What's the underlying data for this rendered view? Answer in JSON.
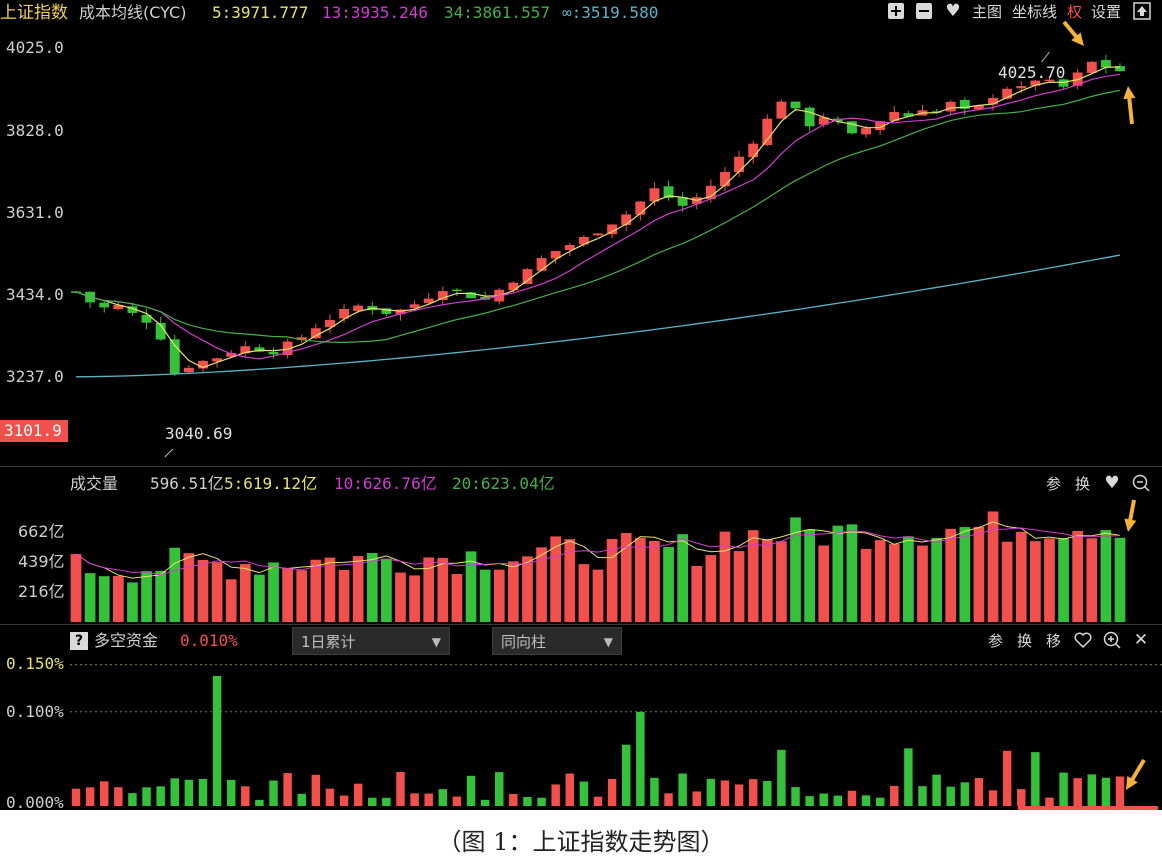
{
  "header": {
    "index_name": "上证指数",
    "indicator": "成本均线(CYC)",
    "ma5": "5:3971.777",
    "ma13": "13:3935.246",
    "ma34": "34:3861.557",
    "ma_inf": "∞:3519.580",
    "toolbar": {
      "main_chart": "主图",
      "axis": "坐标线",
      "rights": "权",
      "settings": "设置"
    }
  },
  "price_axis": {
    "labels": [
      "4025.0",
      "3828.0",
      "3631.0",
      "3434.0",
      "3237.0"
    ],
    "current_badge": "3101.9"
  },
  "annotations": {
    "high": "4025.70",
    "low": "3040.69"
  },
  "volume": {
    "title": "成交量",
    "value": "596.51亿",
    "ma5": "5:619.12亿",
    "ma10": "10:626.76亿",
    "ma20": "20:623.04亿",
    "axis": [
      "662亿",
      "439亿",
      "216亿"
    ],
    "tools": {
      "param": "参",
      "switch": "换"
    }
  },
  "fund": {
    "help": "?",
    "title": "多空资金",
    "value": "0.010%",
    "dropdown1": "1日累计",
    "dropdown2": "同向柱",
    "axis": [
      "0.150%",
      "0.100%",
      "0.000%"
    ],
    "tools": {
      "param": "参",
      "switch": "换",
      "move": "移"
    }
  },
  "colors": {
    "up": "#f2504d",
    "down": "#35c23a",
    "ma5": "#e8e36a",
    "ma13": "#d33bd3",
    "ma34": "#44b04a",
    "ma_inf": "#5bb3c8",
    "background": "#000000",
    "axis_text": "#cfcfcf"
  },
  "caption": "（图 1：上证指数走势图）",
  "chart_data": [
    {
      "type": "candlestick",
      "title": "上证指数 成本均线(CYC)",
      "ylim": [
        3040.69,
        4025.7
      ],
      "y_ticks": [
        4025.0,
        3828.0,
        3631.0,
        3434.0,
        3237.0
      ],
      "period_high": 4025.7,
      "period_low": 3040.69,
      "trend_close": [
        3430,
        3405,
        3390,
        3395,
        3375,
        3360,
        3320,
        3230,
        3250,
        3260,
        3270,
        3285,
        3295,
        3290,
        3285,
        3300,
        3320,
        3345,
        3365,
        3380,
        3395,
        3390,
        3380,
        3385,
        3400,
        3420,
        3440,
        3430,
        3420,
        3410,
        3435,
        3460,
        3480,
        3510,
        3530,
        3545,
        3560,
        3580,
        3600,
        3620,
        3650,
        3680,
        3660,
        3640,
        3660,
        3690,
        3720,
        3760,
        3800,
        3850,
        3900,
        3870,
        3840,
        3860,
        3840,
        3810,
        3830,
        3850,
        3870,
        3860,
        3880,
        3870,
        3890,
        3870,
        3880,
        3910,
        3930,
        3925,
        3950,
        3940,
        3930,
        3960,
        3990,
        3980,
        3970
      ],
      "series": [
        {
          "name": "5",
          "last": 3971.777
        },
        {
          "name": "13",
          "last": 3935.246
        },
        {
          "name": "34",
          "last": 3861.557
        },
        {
          "name": "∞",
          "last": 3519.58
        }
      ]
    },
    {
      "type": "bar",
      "title": "成交量",
      "unit": "亿",
      "y_ticks": [
        662,
        439,
        216
      ],
      "last": 596.51,
      "ma": [
        {
          "name": "5",
          "value": 619.12
        },
        {
          "name": "10",
          "value": 626.76
        },
        {
          "name": "20",
          "value": 623.04
        }
      ]
    },
    {
      "type": "bar",
      "title": "多空资金",
      "unit": "%",
      "y_ticks": [
        0.15,
        0.1,
        0.0
      ],
      "last": 0.01
    }
  ]
}
